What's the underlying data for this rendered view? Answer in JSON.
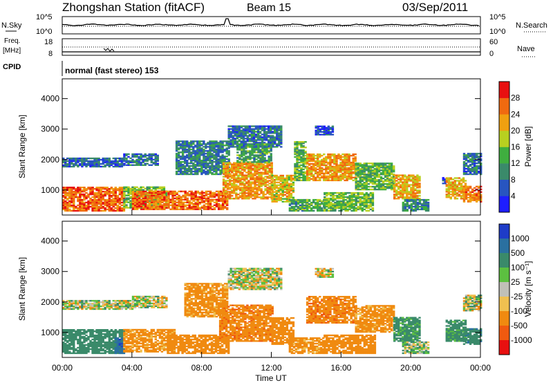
{
  "header": {
    "station": "Zhongshan Station (fitACF)",
    "beam": "Beam 15",
    "date": "03/Sep/2011"
  },
  "top_panels": {
    "nsky_label": "N.Sky",
    "nsky_ticks": [
      "10^5",
      "10^0"
    ],
    "nsearch_label": "N.Search",
    "nsearch_ticks": [
      "10^5",
      "10^0"
    ],
    "freq_label": "Freq.",
    "freq_unit": "[MHz]",
    "freq_ticks": [
      "18",
      "8"
    ],
    "nave_label": "Nave",
    "nave_ticks": [
      "60",
      "0"
    ],
    "cpid_label": "CPID",
    "cpid_text": "normal (fast stereo) 153"
  },
  "chart_data": [
    {
      "type": "heatmap",
      "name": "power",
      "ylabel": "Slant Range [km]",
      "xlim": [
        0,
        24
      ],
      "ylim": [
        180,
        4650
      ],
      "yticks": [
        "1000",
        "2000",
        "3000",
        "4000"
      ],
      "colorbar": {
        "label": "Power [dB]",
        "ticks": [
          "4",
          "8",
          "12",
          "16",
          "20",
          "24",
          "28"
        ],
        "colors": [
          "#1e1eff",
          "#2855c0",
          "#3a8a6a",
          "#3fae3f",
          "#b8d020",
          "#f0a010",
          "#f06a10",
          "#e81010"
        ]
      },
      "regions": [
        {
          "t": [
            0.0,
            3.6
          ],
          "r": [
            300,
            1100
          ],
          "v": 26
        },
        {
          "t": [
            0.0,
            3.5
          ],
          "r": [
            1750,
            2050
          ],
          "v": 7
        },
        {
          "t": [
            3.5,
            6.0
          ],
          "r": [
            400,
            1100
          ],
          "v": 15
        },
        {
          "t": [
            3.5,
            5.5
          ],
          "r": [
            1800,
            2200
          ],
          "v": 8
        },
        {
          "t": [
            4.0,
            9.5
          ],
          "r": [
            350,
            950
          ],
          "v": 26
        },
        {
          "t": [
            6.5,
            9.5
          ],
          "r": [
            1500,
            2600
          ],
          "v": 9
        },
        {
          "t": [
            9.2,
            12.0
          ],
          "r": [
            700,
            1900
          ],
          "v": 23
        },
        {
          "t": [
            9.5,
            12.5
          ],
          "r": [
            2400,
            3100
          ],
          "v": 8
        },
        {
          "t": [
            10.0,
            12.0
          ],
          "r": [
            1900,
            2500
          ],
          "v": 12
        },
        {
          "t": [
            12.0,
            13.3
          ],
          "r": [
            600,
            1500
          ],
          "v": 20
        },
        {
          "t": [
            13.0,
            14.0
          ],
          "r": [
            300,
            700
          ],
          "v": 12
        },
        {
          "t": [
            13.3,
            14.0
          ],
          "r": [
            1300,
            2600
          ],
          "v": 14
        },
        {
          "t": [
            14.0,
            15.0
          ],
          "r": [
            300,
            700
          ],
          "v": 13
        },
        {
          "t": [
            14.0,
            16.8
          ],
          "r": [
            1300,
            2200
          ],
          "v": 23
        },
        {
          "t": [
            14.5,
            15.5
          ],
          "r": [
            2800,
            3100
          ],
          "v": 6
        },
        {
          "t": [
            15.0,
            17.8
          ],
          "r": [
            300,
            900
          ],
          "v": 15
        },
        {
          "t": [
            16.8,
            19.0
          ],
          "r": [
            1000,
            1900
          ],
          "v": 14
        },
        {
          "t": [
            19.0,
            20.5
          ],
          "r": [
            700,
            1500
          ],
          "v": 22
        },
        {
          "t": [
            19.5,
            21.0
          ],
          "r": [
            300,
            700
          ],
          "v": 10
        },
        {
          "t": [
            21.8,
            22.0
          ],
          "r": [
            1200,
            1400
          ],
          "v": 7
        },
        {
          "t": [
            22.0,
            23.2
          ],
          "r": [
            700,
            1400
          ],
          "v": 22
        },
        {
          "t": [
            23.0,
            24.0
          ],
          "r": [
            600,
            1100
          ],
          "v": 25
        },
        {
          "t": [
            23.0,
            24.0
          ],
          "r": [
            1500,
            2200
          ],
          "v": 8
        }
      ]
    },
    {
      "type": "heatmap",
      "name": "velocity",
      "xlabel": "Time UT",
      "ylabel": "Slant Range [km]",
      "xlim": [
        0,
        24
      ],
      "ylim": [
        180,
        4650
      ],
      "xticks": [
        "00:00",
        "04:00",
        "08:00",
        "12:00",
        "16:00",
        "20:00",
        "00:00"
      ],
      "yticks": [
        "1000",
        "2000",
        "3000",
        "4000"
      ],
      "colorbar": {
        "label": "Velocity [m s⁻¹]",
        "ticks": [
          "1000",
          "500",
          "100",
          "25",
          "-25",
          "-100",
          "-500",
          "-1000"
        ],
        "colors": [
          "#1e3cc8",
          "#2a70a0",
          "#3a8a6a",
          "#5cc040",
          "#c0c0b8",
          "#f0c050",
          "#f08a10",
          "#f05a10",
          "#e81010"
        ]
      },
      "regions": [
        {
          "t": [
            0.0,
            3.5
          ],
          "r": [
            300,
            1100
          ],
          "v": 300
        },
        {
          "t": [
            0.0,
            4.0
          ],
          "r": [
            1750,
            2050
          ],
          "v": 0
        },
        {
          "t": [
            3.0,
            3.5
          ],
          "r": [
            300,
            800
          ],
          "v": 900
        },
        {
          "t": [
            3.5,
            6.5
          ],
          "r": [
            350,
            1100
          ],
          "v": -200
        },
        {
          "t": [
            4.0,
            6.0
          ],
          "r": [
            1800,
            2200
          ],
          "v": 0
        },
        {
          "t": [
            6.0,
            9.5
          ],
          "r": [
            300,
            900
          ],
          "v": -300
        },
        {
          "t": [
            7.0,
            9.5
          ],
          "r": [
            1500,
            2600
          ],
          "v": -200
        },
        {
          "t": [
            9.0,
            12.0
          ],
          "r": [
            700,
            1900
          ],
          "v": -400
        },
        {
          "t": [
            9.5,
            12.5
          ],
          "r": [
            2400,
            3100
          ],
          "v": 0
        },
        {
          "t": [
            12.0,
            13.3
          ],
          "r": [
            600,
            1500
          ],
          "v": -300
        },
        {
          "t": [
            13.0,
            15.0
          ],
          "r": [
            300,
            800
          ],
          "v": -200
        },
        {
          "t": [
            14.0,
            16.8
          ],
          "r": [
            1300,
            2200
          ],
          "v": -400
        },
        {
          "t": [
            14.5,
            15.5
          ],
          "r": [
            2800,
            3100
          ],
          "v": 0
        },
        {
          "t": [
            15.0,
            18.0
          ],
          "r": [
            300,
            900
          ],
          "v": -300
        },
        {
          "t": [
            16.8,
            19.0
          ],
          "r": [
            1000,
            1900
          ],
          "v": -200
        },
        {
          "t": [
            19.0,
            20.5
          ],
          "r": [
            700,
            1500
          ],
          "v": 200
        },
        {
          "t": [
            19.5,
            21.0
          ],
          "r": [
            300,
            700
          ],
          "v": 50
        },
        {
          "t": [
            22.0,
            23.2
          ],
          "r": [
            700,
            1400
          ],
          "v": 200
        },
        {
          "t": [
            23.0,
            24.0
          ],
          "r": [
            600,
            1100
          ],
          "v": 400
        },
        {
          "t": [
            23.0,
            24.0
          ],
          "r": [
            1700,
            2200
          ],
          "v": 0
        }
      ]
    }
  ]
}
